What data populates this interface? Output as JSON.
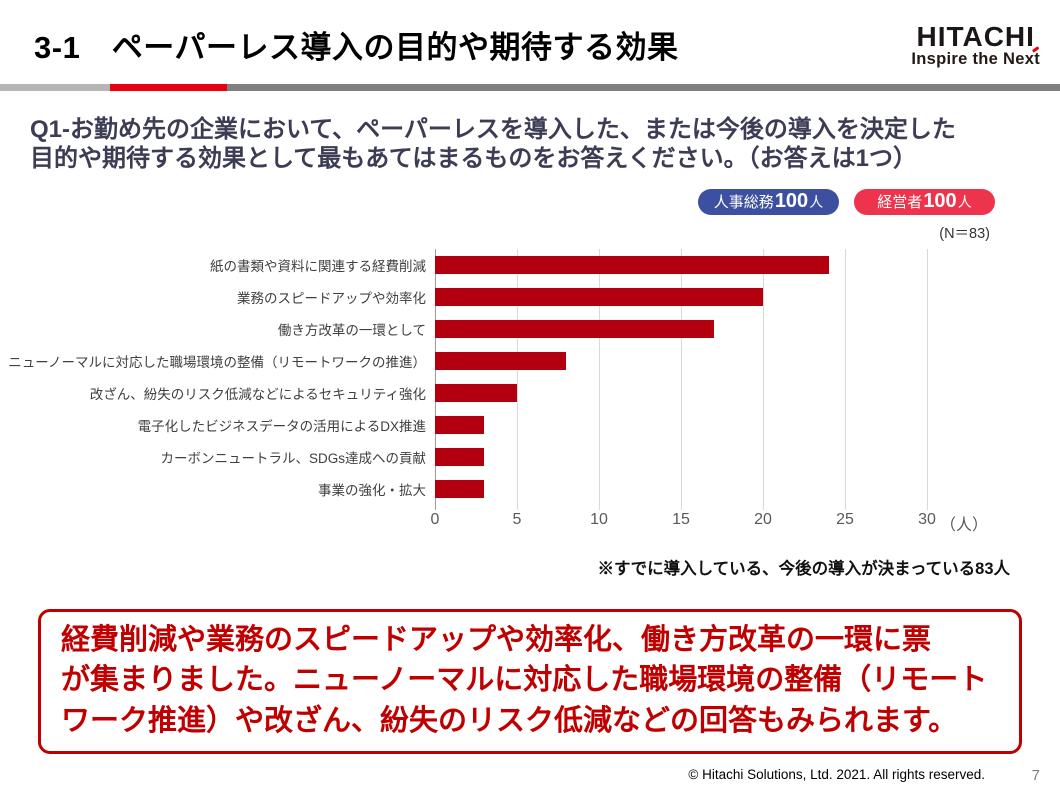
{
  "header": {
    "title": "3-1　ペーパーレス導入の目的や期待する効果",
    "logo": {
      "name": "HITACHI",
      "tagline": "Inspire the Next"
    }
  },
  "question": {
    "lines": [
      "Q1-お勤め先の企業において、ペーパーレスを導入した、または今後の導入を決定した",
      "目的や期待する効果として最もあてはまるものをお答えください。（お答えは1つ）"
    ]
  },
  "badges": [
    {
      "label": "人事総務",
      "count": "100",
      "unit": "人",
      "color": "#3d50a0"
    },
    {
      "label": "経営者",
      "count": "100",
      "unit": "人",
      "color": "#ee334c"
    }
  ],
  "survey": {
    "n_label": "(N＝83)"
  },
  "chart_data": {
    "type": "bar",
    "orientation": "horizontal",
    "title": "",
    "categories": [
      "紙の書類や資料に関連する経費削減",
      "業務のスピードアップや効率化",
      "働き方改革の一環として",
      "ニューノーマルに対応した職場環境の整備（リモートワークの推進）",
      "改ざん、紛失のリスク低減などによるセキュリティ強化",
      "電子化したビジネスデータの活用によるDX推進",
      "カーボンニュートラル、SDGs達成への貢献",
      "事業の強化・拡大"
    ],
    "values": [
      24,
      20,
      17,
      8,
      5,
      3,
      3,
      3
    ],
    "xlim": [
      0,
      30
    ],
    "xticks": [
      0,
      5,
      10,
      15,
      20,
      25,
      30
    ],
    "x_unit": "（人）",
    "bar_color": "#b2000f",
    "grid": true,
    "note": "※すでに導入している、今後の導入が決まっている83人"
  },
  "summary": {
    "lines": [
      "経費削減や業務のスピードアップや効率化、働き方改革の一環に票",
      "が集まりました。ニューノーマルに対応した職場環境の整備（リモート",
      "ワーク推進）や改ざん、紛失のリスク低減などの回答もみられます。"
    ]
  },
  "footer": {
    "copyright": "© Hitachi Solutions, Ltd. 2021. All rights reserved.",
    "page_number": "7"
  },
  "colors": {
    "bar": "#b2000f",
    "badge_blue": "#3d50a0",
    "badge_red": "#ee334c",
    "summary_red": "#c00000",
    "accent_red": "#e8000f",
    "divider_gray_light": "#b5b5b5",
    "divider_gray_dark": "#7f7f7f"
  }
}
